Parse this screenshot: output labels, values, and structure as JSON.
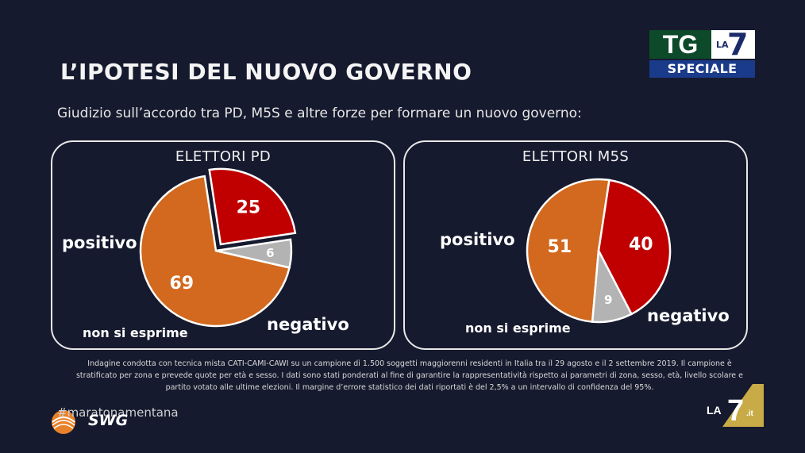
{
  "header": {
    "title": "L’IPOTESI DEL NUOVO GOVERNO",
    "subtitle": "Giudizio sull’accordo tra PD, M5S e altre forze per formare un nuovo governo:"
  },
  "broadcaster": {
    "tg_label": "TG",
    "la_label": "LA",
    "seven_label": "7",
    "speciale_label": "SPECIALE",
    "corner_la_label": "LA",
    "corner_seven_label": "7",
    "corner_it_label": ".it"
  },
  "colors": {
    "positivo": "#d2691e",
    "negativo": "#c00000",
    "non_si_esprime": "#b3b3b3",
    "background": "#161a2e"
  },
  "chart_data": [
    {
      "type": "pie",
      "title": "ELETTORI PD",
      "categories": [
        "positivo",
        "negativo",
        "non si esprime"
      ],
      "values": [
        69,
        25,
        6
      ]
    },
    {
      "type": "pie",
      "title": "ELETTORI M5S",
      "categories": [
        "positivo",
        "negativo",
        "non si esprime"
      ],
      "values": [
        51,
        40,
        9
      ]
    }
  ],
  "footnote": "Indagine condotta con tecnica mista CATI-CAMI-CAWI su un campione di 1.500 soggetti maggiorenni residenti in Italia tra il 29 agosto e il 2 settembre 2019. Il campione è stratificato per zona e prevede quote per età e sesso. I dati sono stati ponderati al fine di garantire la rappresentatività rispetto ai parametri di zona, sesso, età, livello scolare e partito votato alle ultime elezioni. Il margine d’errore statistico dei dati riportati è del 2,5% a un intervallo di confidenza del 95%.",
  "footer": {
    "hashtag": "#maratonamentana",
    "source": "SWG"
  }
}
